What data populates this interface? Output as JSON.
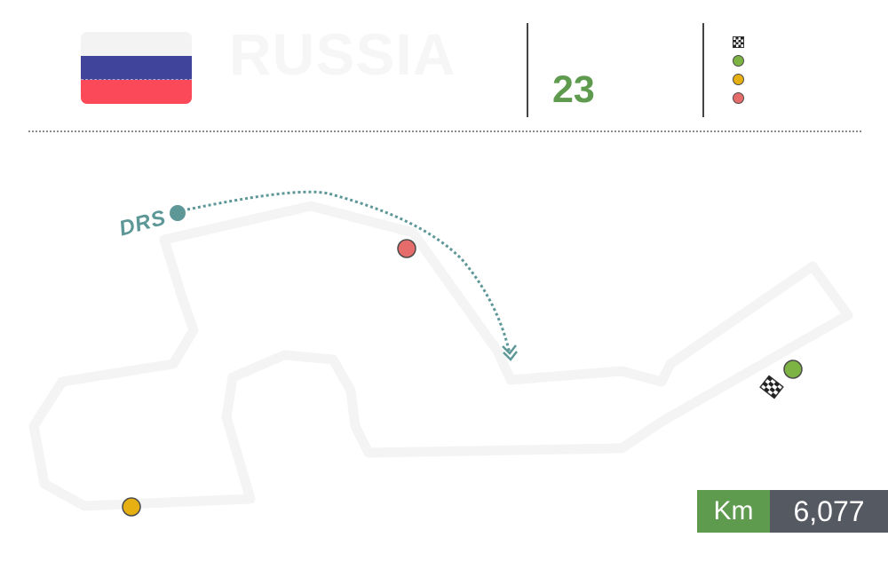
{
  "header": {
    "country": "RUSSIA",
    "subtitle": "",
    "laps_label": "",
    "laps": "23",
    "flag_colors": [
      "#f3f3f4",
      "#41449b",
      "#fb4959"
    ]
  },
  "legend": {
    "items": [
      {
        "icon": "checkered-flag-icon",
        "label": ""
      },
      {
        "icon": "green-dot-icon",
        "color": "#7cb342",
        "label": ""
      },
      {
        "icon": "yellow-dot-icon",
        "color": "#e6b012",
        "label": ""
      },
      {
        "icon": "red-dot-icon",
        "color": "#e56c6a",
        "label": ""
      }
    ]
  },
  "map": {
    "drs_label": "DRS",
    "drs_color": "#5e9797",
    "track_color": "#f4f4f4"
  },
  "stats": {
    "unit": "Km",
    "length": "6,077"
  }
}
